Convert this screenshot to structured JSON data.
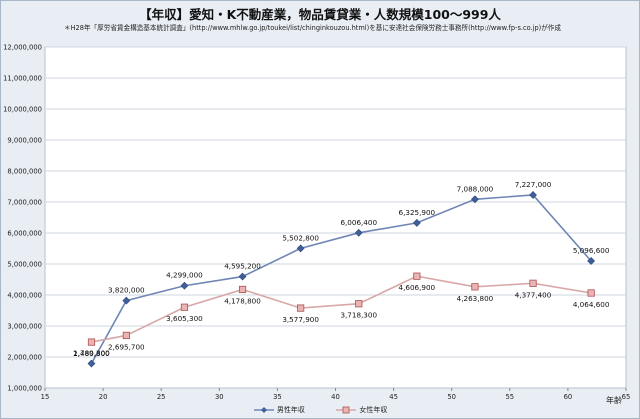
{
  "chart_data": {
    "type": "line",
    "title": "【年収】愛知・K不動産業，物品賃貸業・人数規模100～999人",
    "subtitle": "＊H28年「厚労省賃金構造基本統計調査」(http://www.mhlw.go.jp/toukei/list/chinginkouzou.html)を基に安達社会保険労務士事務所(http://www.fp-s.co.jp)が作成",
    "xlabel": "年齢",
    "ylabel": "",
    "xlim": [
      15,
      65
    ],
    "ylim": [
      1000000,
      12000000
    ],
    "xticks": [
      15,
      20,
      25,
      30,
      35,
      40,
      45,
      50,
      55,
      60,
      65
    ],
    "yticks": [
      1000000,
      2000000,
      3000000,
      4000000,
      5000000,
      6000000,
      7000000,
      8000000,
      9000000,
      10000000,
      11000000,
      12000000
    ],
    "ytick_labels": [
      "1,000,000",
      "2,000,000",
      "3,000,000",
      "4,000,000",
      "5,000,000",
      "6,000,000",
      "7,000,000",
      "8,000,000",
      "9,000,000",
      "10,000,000",
      "11,000,000",
      "12,000,000"
    ],
    "xtick_labels": [
      "15",
      "20",
      "25",
      "30",
      "35",
      "40",
      "45",
      "50",
      "55",
      "60",
      "65"
    ],
    "grid": true,
    "legend_position": "bottom",
    "series": [
      {
        "name": "男性年収",
        "color": "#6f86b4",
        "marker": "diamond",
        "x": [
          19,
          22,
          27,
          32,
          37,
          42,
          47,
          52,
          57,
          62
        ],
        "values": [
          1789300,
          3820000,
          4299000,
          4595200,
          5502800,
          6006400,
          6325900,
          7088000,
          7227000,
          5096600
        ],
        "labels": [
          "1,789,300",
          "3,820,000",
          "4,299,000",
          "4,595,200",
          "5,502,800",
          "6,006,400",
          "6,325,900",
          "7,088,000",
          "7,227,000",
          "5,096,600"
        ]
      },
      {
        "name": "女性年収",
        "color": "#d9a7a7",
        "marker": "square",
        "x": [
          19,
          22,
          27,
          32,
          37,
          42,
          47,
          52,
          57,
          62
        ],
        "values": [
          2480800,
          2695700,
          3605300,
          4178800,
          3577900,
          3718300,
          4606900,
          4263800,
          4377400,
          4064600
        ],
        "labels": [
          "2,480,800",
          "2,695,700",
          "3,605,300",
          "4,178,800",
          "3,577,900",
          "3,718,300",
          "4,606,900",
          "4,263,800",
          "4,377,400",
          "4,064,600"
        ]
      }
    ]
  }
}
